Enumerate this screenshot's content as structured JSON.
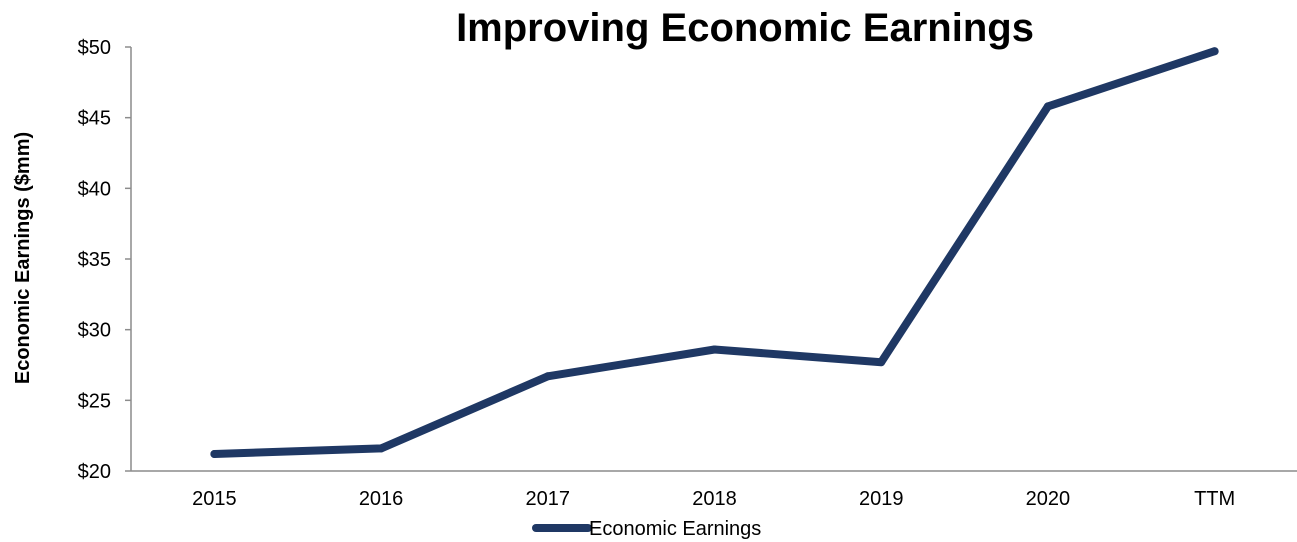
{
  "chart_data": {
    "type": "line",
    "title": "Improving Economic Earnings",
    "xlabel": "",
    "ylabel": "Economic Earnings ($mm)",
    "categories": [
      "2015",
      "2016",
      "2017",
      "2018",
      "2019",
      "2020",
      "TTM"
    ],
    "series": [
      {
        "name": "Economic Earnings",
        "values": [
          21.2,
          21.6,
          26.7,
          28.6,
          27.7,
          45.8,
          49.7
        ],
        "color": "#1f3864"
      }
    ],
    "ylim": [
      20,
      50
    ],
    "yticks": [
      20,
      25,
      30,
      35,
      40,
      45,
      50
    ],
    "ytick_labels": [
      "$20",
      "$25",
      "$30",
      "$35",
      "$40",
      "$45",
      "$50"
    ],
    "grid": false,
    "legend_position": "bottom-center"
  }
}
